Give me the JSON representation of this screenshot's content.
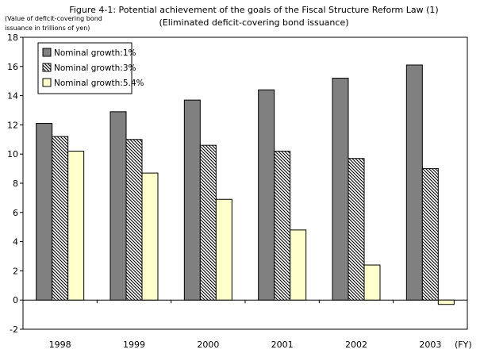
{
  "chart_data": {
    "type": "bar",
    "title": "Figure 4-1: Potential achievement of the goals of the Fiscal Structure Reform Law (1)",
    "subtitle": "(Eliminated deficit-covering bond issuance)",
    "ylabel_lines": [
      "(Value of deficit-covering bond",
      "issuance in trillions of yen)"
    ],
    "x_unit": "(FY)",
    "categories": [
      "1998",
      "1999",
      "2000",
      "2001",
      "2002",
      "2003"
    ],
    "ylim": [
      -2,
      18
    ],
    "yticks": [
      -2,
      0,
      2,
      4,
      6,
      8,
      10,
      12,
      14,
      16,
      18
    ],
    "grid": false,
    "legend_position": "top-left",
    "series": [
      {
        "name": "Nominal growth:1%",
        "values": [
          12.1,
          12.9,
          13.7,
          14.4,
          15.2,
          16.1
        ],
        "color": "#808080",
        "fill": "solid"
      },
      {
        "name": "Nominal growth:3%",
        "values": [
          11.2,
          11.0,
          10.6,
          10.2,
          9.7,
          9.0
        ],
        "color": "#000000",
        "fill": "hatch"
      },
      {
        "name": "Nominal growth:5.4%",
        "values": [
          10.2,
          8.7,
          6.9,
          4.8,
          2.4,
          -0.3
        ],
        "color": "#ffffcc",
        "fill": "solid"
      }
    ]
  }
}
